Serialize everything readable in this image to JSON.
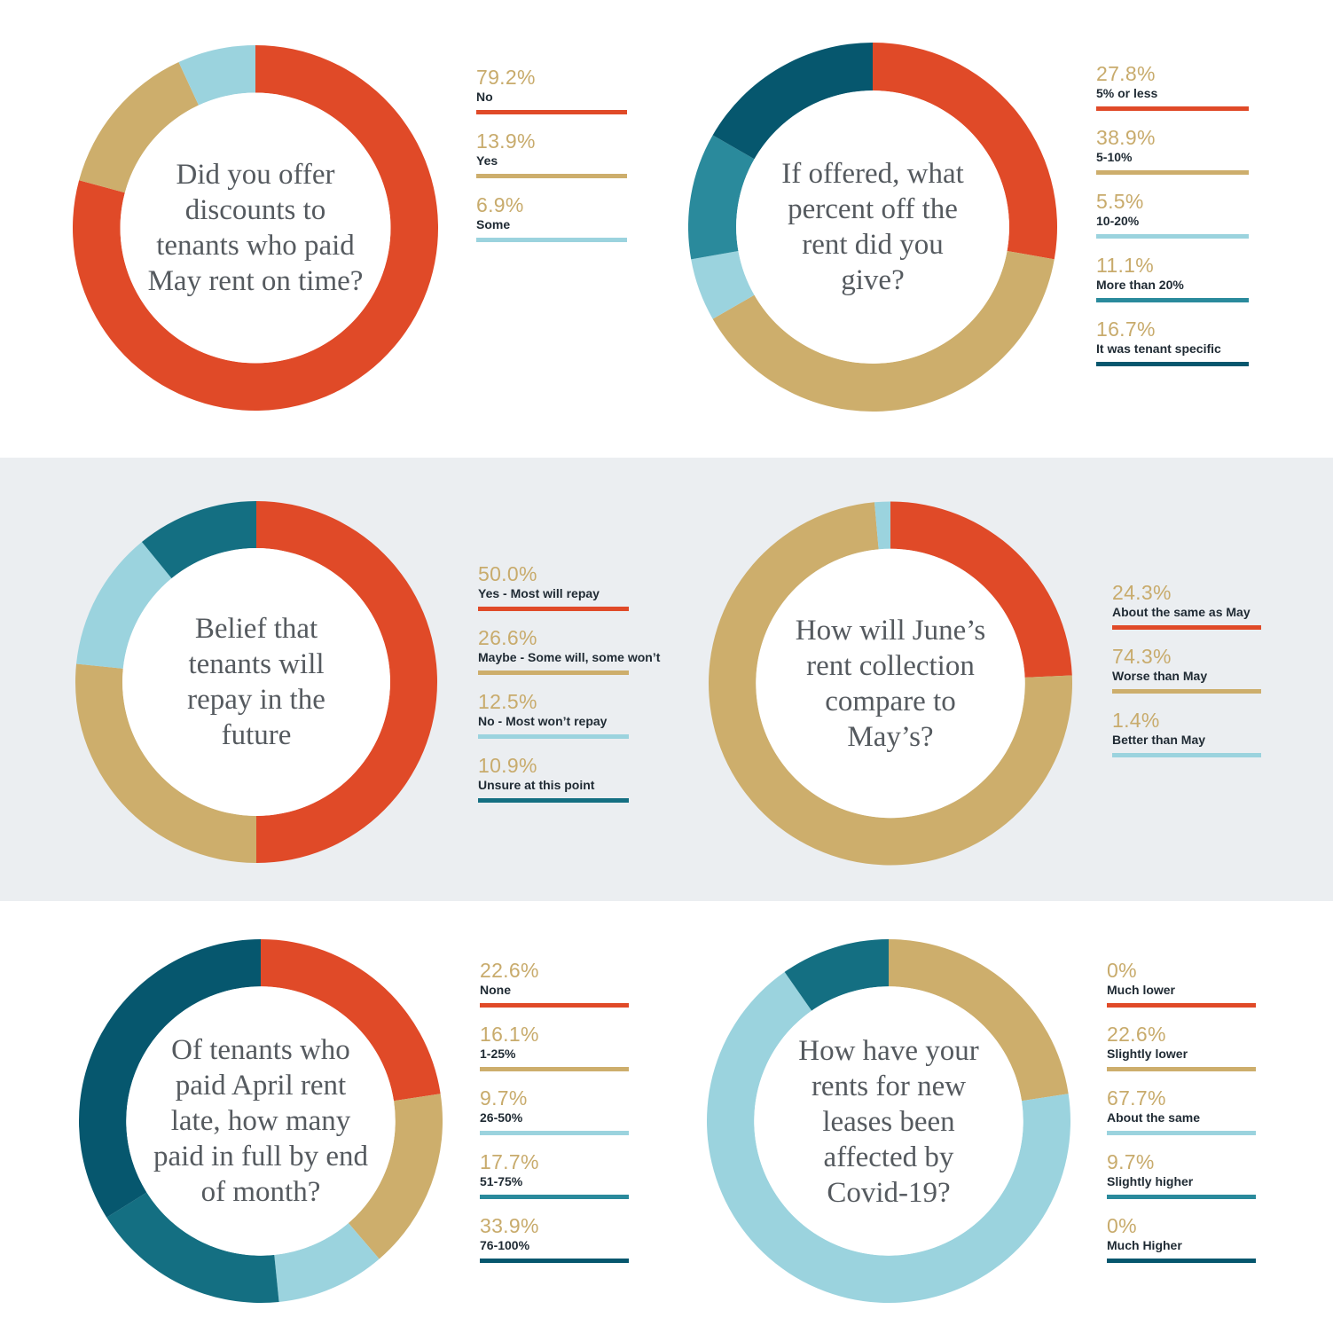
{
  "colors": {
    "red": "#e04a28",
    "tan": "#cdae6c",
    "lightblue": "#9bd3de",
    "teal": "#2a8a9c",
    "darkteal": "#146f82",
    "navy": "#06576e",
    "grey_band": "#ebeef1"
  },
  "chart_data": [
    {
      "type": "pie",
      "title": "Did you offer discounts to tenants who paid May rent on time?",
      "categories": [
        "No",
        "Yes",
        "Some"
      ],
      "values": [
        79.2,
        13.9,
        6.9
      ],
      "value_labels": [
        "79.2%",
        "13.9%",
        "6.9%"
      ],
      "colors": [
        "#e04a28",
        "#cdae6c",
        "#9bd3de"
      ],
      "legend_colors": [
        "#e04a28",
        "#cdae6c",
        "#9bd3de"
      ],
      "legend": "right"
    },
    {
      "type": "pie",
      "title": "If offered, what percent off the rent did you give?",
      "categories": [
        "5% or less",
        "5-10%",
        "10-20%",
        "More than 20%",
        "It was tenant specific"
      ],
      "values": [
        27.8,
        38.9,
        5.5,
        11.1,
        16.7
      ],
      "value_labels": [
        "27.8%",
        "38.9%",
        "5.5%",
        "11.1%",
        "16.7%"
      ],
      "colors": [
        "#e04a28",
        "#cdae6c",
        "#9bd3de",
        "#2a8a9c",
        "#06576e"
      ],
      "legend_colors": [
        "#e04a28",
        "#cdae6c",
        "#9bd3de",
        "#2a8a9c",
        "#06576e"
      ],
      "legend": "right"
    },
    {
      "type": "pie",
      "title": "Belief that tenants will repay in the future",
      "categories": [
        "Yes - Most will repay",
        "Maybe - Some will, some won’t",
        "No - Most won’t repay",
        "Unsure at this point"
      ],
      "values": [
        50.0,
        26.6,
        12.5,
        10.9
      ],
      "value_labels": [
        "50.0%",
        "26.6%",
        "12.5%",
        "10.9%"
      ],
      "colors": [
        "#e04a28",
        "#cdae6c",
        "#9bd3de",
        "#146f82"
      ],
      "legend_colors": [
        "#e04a28",
        "#cdae6c",
        "#9bd3de",
        "#146f82"
      ],
      "legend": "right"
    },
    {
      "type": "pie",
      "title": "How will June’s rent collection compare to May’s?",
      "categories": [
        "About the same as May",
        "Worse than May",
        "Better than May"
      ],
      "values": [
        24.3,
        74.3,
        1.4
      ],
      "value_labels": [
        "24.3%",
        "74.3%",
        "1.4%"
      ],
      "colors": [
        "#e04a28",
        "#cdae6c",
        "#9bd3de"
      ],
      "legend_colors": [
        "#e04a28",
        "#cdae6c",
        "#9bd3de"
      ],
      "legend": "right"
    },
    {
      "type": "pie",
      "title": "Of tenants who paid April rent late, how many paid in full by end of month?",
      "categories": [
        "None",
        "1-25%",
        "26-50%",
        "51-75%",
        "76-100%"
      ],
      "values": [
        22.6,
        16.1,
        9.7,
        17.7,
        33.9
      ],
      "value_labels": [
        "22.6%",
        "16.1%",
        "9.7%",
        "17.7%",
        "33.9%"
      ],
      "colors": [
        "#e04a28",
        "#cdae6c",
        "#9bd3de",
        "#146f82",
        "#06576e"
      ],
      "legend_colors": [
        "#e04a28",
        "#cdae6c",
        "#9bd3de",
        "#2a8a9c",
        "#06576e"
      ],
      "legend": "right"
    },
    {
      "type": "pie",
      "title": "How have your rents for new leases been affected by Covid-19?",
      "categories": [
        "Much lower",
        "Slightly lower",
        "About the same",
        "Slightly higher",
        "Much Higher"
      ],
      "values": [
        0,
        22.6,
        67.7,
        9.7,
        0
      ],
      "value_labels": [
        "0%",
        "22.6%",
        "67.7%",
        "9.7%",
        "0%"
      ],
      "colors": [
        "#e04a28",
        "#cdae6c",
        "#9bd3de",
        "#146f82",
        "#06576e"
      ],
      "legend_colors": [
        "#e04a28",
        "#cdae6c",
        "#9bd3de",
        "#2a8a9c",
        "#06576e"
      ],
      "legend": "right"
    }
  ]
}
